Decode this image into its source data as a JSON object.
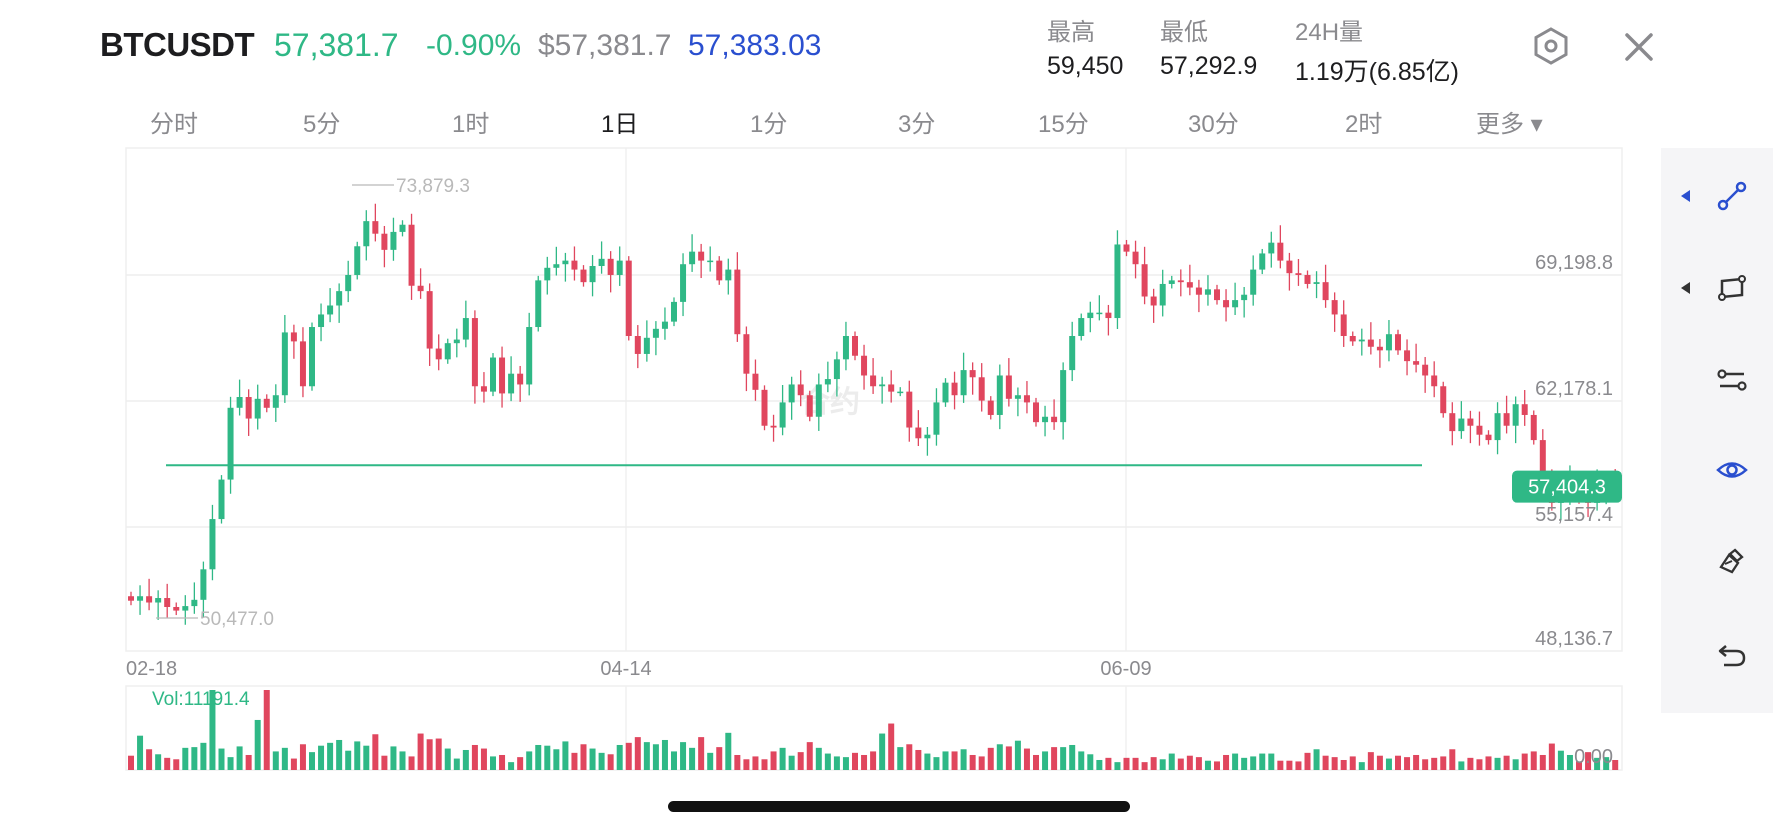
{
  "header": {
    "symbol": "BTCUSDT",
    "last_price": "57,381.7",
    "change_pct": "-0.90%",
    "usd_price": "$57,381.7",
    "mark_price": "57,383.03"
  },
  "stats": [
    {
      "label": "最高",
      "value": "59,450"
    },
    {
      "label": "最低",
      "value": "57,292.9"
    },
    {
      "label": "24H量",
      "value": "1.19万(6.85亿)"
    }
  ],
  "tabs": [
    {
      "label": "分时",
      "active": false
    },
    {
      "label": "5分",
      "active": false
    },
    {
      "label": "1时",
      "active": false
    },
    {
      "label": "1日",
      "active": true
    },
    {
      "label": "1分",
      "active": false
    },
    {
      "label": "3分",
      "active": false
    },
    {
      "label": "15分",
      "active": false
    },
    {
      "label": "30分",
      "active": false
    },
    {
      "label": "2时",
      "active": false
    },
    {
      "label": "更多 ▾",
      "active": false
    }
  ],
  "toolbar": [
    {
      "icon": "trend-line-icon",
      "active": true
    },
    {
      "icon": "rectangle-tool-icon",
      "active": false
    },
    {
      "icon": "parallel-lines-icon",
      "active": false
    },
    {
      "icon": "eye-icon",
      "active": true
    },
    {
      "icon": "eraser-icon",
      "active": false
    },
    {
      "icon": "undo-icon",
      "active": false
    }
  ],
  "colors": {
    "up": "#2fb886",
    "down": "#e0465e",
    "accent": "#2a4fcf",
    "grid": "#ececec",
    "axis_text": "#8a8a8e"
  },
  "chart_data": {
    "type": "candlestick",
    "y_ticks": [
      "69,198.8",
      "62,178.1",
      "55,157.4",
      "48,136.7"
    ],
    "y_tick_values": [
      69198.8,
      62178.1,
      55157.4,
      48136.7
    ],
    "x_ticks": [
      "02-18",
      "04-14",
      "06-09"
    ],
    "x_tick_index": [
      0,
      55,
      110
    ],
    "high_marker": "73,879.3",
    "low_marker": "50,477.0",
    "horizontal_line": 58600,
    "current_price_label": "57,404.3",
    "current_price": 57404.3,
    "volume_label": "Vol:11191.4",
    "volume_axis_label": "0.00",
    "closes": [
      51050,
      51300,
      50950,
      51200,
      50700,
      50500,
      50750,
      51100,
      52800,
      55600,
      57800,
      61800,
      62400,
      61200,
      62300,
      61800,
      62500,
      66000,
      65500,
      63000,
      66300,
      67000,
      67500,
      68300,
      69200,
      70800,
      72200,
      71500,
      70600,
      71600,
      72000,
      68600,
      68300,
      65100,
      64500,
      65400,
      65600,
      66800,
      63000,
      62700,
      64600,
      62600,
      63700,
      63100,
      66300,
      68900,
      69600,
      69800,
      70000,
      69500,
      68800,
      69700,
      70100,
      69200,
      70000,
      65800,
      64800,
      65700,
      66200,
      66600,
      67700,
      69800,
      70500,
      70000,
      70000,
      68900,
      69500,
      65900,
      63700,
      62800,
      60800,
      60700,
      62100,
      63100,
      62500,
      61300,
      63100,
      63400,
      64500,
      65800,
      64700,
      63600,
      63000,
      63100,
      62700,
      62700,
      60700,
      60100,
      60300,
      62100,
      63200,
      62500,
      63900,
      63500,
      62200,
      61400,
      63600,
      62300,
      62500,
      62100,
      61000,
      61300,
      61000,
      63900,
      65800,
      66800,
      67100,
      67100,
      66800,
      70900,
      70500,
      69800,
      68000,
      67500,
      68700,
      68900,
      68800,
      68500,
      68100,
      68400,
      67800,
      67400,
      67800,
      68100,
      69500,
      70400,
      71000,
      70000,
      69300,
      69200,
      68700,
      68800,
      67800,
      67000,
      65800,
      65500,
      65600,
      65200,
      65000,
      65900,
      65000,
      64400,
      64200,
      63600,
      63000,
      61500,
      60500,
      61200,
      60800,
      60300,
      60000,
      61500,
      60800,
      62000,
      61400,
      60000,
      57400,
      56500,
      57000,
      57800,
      56700,
      56500,
      57400,
      57600,
      57404
    ],
    "volumes": [
      2000,
      4800,
      2900,
      2200,
      1700,
      1500,
      3100,
      3200,
      3800,
      11191,
      3000,
      1800,
      3300,
      2100,
      7000,
      11191,
      2600,
      3100,
      1600,
      3600,
      2500,
      3400,
      3800,
      4200,
      2700,
      4000,
      3400,
      5000,
      2000,
      3300,
      2600,
      1900,
      5100,
      4300,
      4400,
      3000,
      1600,
      2800,
      3500,
      3000,
      1900,
      2100,
      1100,
      1800,
      2600,
      3500,
      3400,
      2900,
      4000,
      2400,
      3600,
      3000,
      2400,
      2200,
      3500,
      3800,
      4600,
      3900,
      3600,
      4200,
      2600,
      3900,
      3100,
      4600,
      2400,
      3200,
      5200,
      2100,
      1500,
      1900,
      1500,
      2600,
      3100,
      2000,
      2500,
      3900,
      3100,
      2300,
      1900,
      1800,
      2400,
      2100,
      2600,
      5100,
      6500,
      3200,
      3600,
      2800,
      2300,
      1800,
      2600,
      2600,
      2900,
      2100,
      1900,
      3100,
      3600,
      3300,
      4100,
      3000,
      2100,
      2600,
      3200,
      3200,
      3500,
      2600,
      2200,
      1400,
      1700,
      1100,
      1700,
      1700,
      1100,
      1800,
      1500,
      2300,
      1600,
      2000,
      1800,
      1300,
      1200,
      2100,
      2300,
      1700,
      1900,
      2300,
      2300,
      1300,
      1300,
      1200,
      2400,
      2900,
      2000,
      1800,
      1400,
      1900,
      1100,
      2500,
      2000,
      1600,
      2000,
      1800,
      2100,
      1500,
      1700,
      1900,
      2900,
      1200,
      1700,
      1500,
      1900,
      1700,
      2000,
      1500,
      2300,
      2600,
      2100,
      3700,
      2700,
      2100,
      1200,
      2500,
      1700,
      1800,
      1400
    ]
  }
}
